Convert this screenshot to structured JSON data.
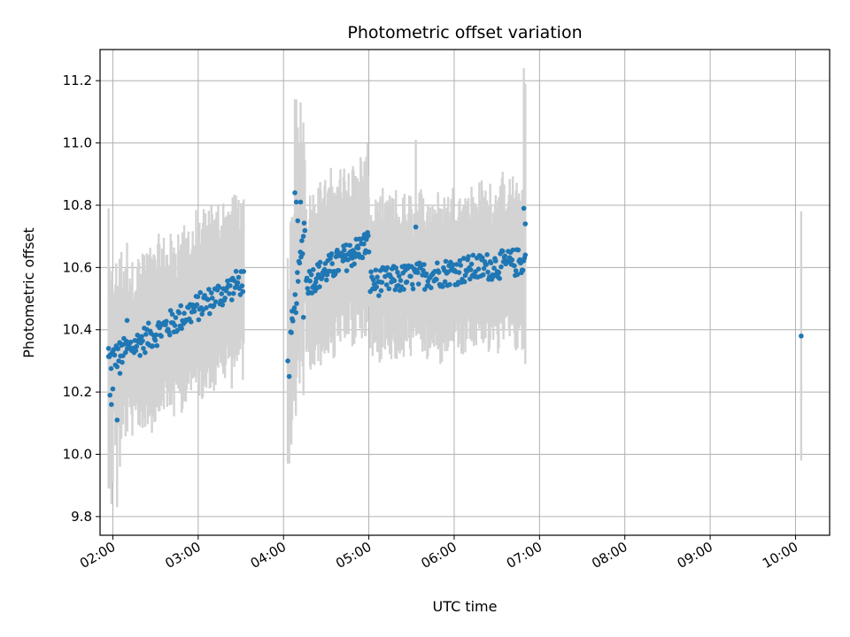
{
  "chart_data": {
    "type": "scatter",
    "title": "Photometric offset variation",
    "xlabel": "UTC time",
    "ylabel": "Photometric offset",
    "x_tick_labels": [
      "02:00",
      "03:00",
      "04:00",
      "05:00",
      "06:00",
      "07:00",
      "08:00",
      "09:00",
      "10:00"
    ],
    "y_tick_labels": [
      "9.8",
      "10.0",
      "10.2",
      "10.4",
      "10.6",
      "10.8",
      "11.0",
      "11.2"
    ],
    "x_range": [
      "01:51",
      "10:24"
    ],
    "ylim": [
      9.74,
      11.3
    ],
    "grid": true,
    "colors": {
      "points": "#1f77b4",
      "errorbars": "#d3d3d3",
      "grid": "#b0b0b0"
    },
    "segments": [
      {
        "start": "01:57",
        "end": "03:32",
        "y_start": 10.3,
        "y_end": 10.56,
        "n": 160,
        "err": 0.22
      },
      {
        "start": "04:05",
        "end": "04:15",
        "y_start": 10.35,
        "y_end": 10.75,
        "n": 20,
        "err": 0.3
      },
      {
        "start": "04:16",
        "end": "05:00",
        "y_start": 10.55,
        "y_end": 10.68,
        "n": 100,
        "err": 0.22
      },
      {
        "start": "05:01",
        "end": "06:50",
        "y_start": 10.55,
        "y_end": 10.62,
        "n": 200,
        "err": 0.2
      }
    ],
    "points": [
      {
        "x": "01:57",
        "y": 10.34,
        "err": 0.45
      },
      {
        "x": "01:58",
        "y": 10.19,
        "err": 0.3
      },
      {
        "x": "01:59",
        "y": 10.16,
        "err": 0.32
      },
      {
        "x": "02:00",
        "y": 10.21,
        "err": 0.3
      },
      {
        "x": "02:03",
        "y": 10.11,
        "err": 0.28
      },
      {
        "x": "02:05",
        "y": 10.26,
        "err": 0.3
      },
      {
        "x": "02:06",
        "y": 10.35,
        "err": 0.3
      },
      {
        "x": "02:10",
        "y": 10.43,
        "err": 0.25
      },
      {
        "x": "04:03",
        "y": 10.3,
        "err": 0.33
      },
      {
        "x": "04:04",
        "y": 10.25,
        "err": 0.28
      },
      {
        "x": "04:06",
        "y": 10.46,
        "err": 0.3
      },
      {
        "x": "04:08",
        "y": 10.84,
        "err": 0.3
      },
      {
        "x": "04:09",
        "y": 10.81,
        "err": 0.33
      },
      {
        "x": "04:10",
        "y": 10.75,
        "err": 0.3
      },
      {
        "x": "04:12",
        "y": 10.81,
        "err": 0.32
      },
      {
        "x": "04:14",
        "y": 10.44,
        "err": 0.25
      },
      {
        "x": "05:33",
        "y": 10.73,
        "err": 0.28
      },
      {
        "x": "06:49",
        "y": 10.79,
        "err": 0.45
      },
      {
        "x": "06:50",
        "y": 10.74,
        "err": 0.45
      },
      {
        "x": "10:04",
        "y": 10.38,
        "err": 0.4
      }
    ]
  }
}
